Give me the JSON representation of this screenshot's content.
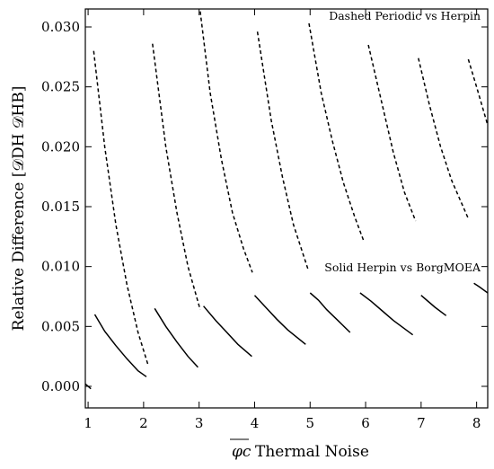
{
  "chart_data": {
    "type": "line",
    "title": "",
    "xlabel_symbol": "φc",
    "xlabel_text": "Thermal Noise",
    "ylabel": "Relative Difference [𝒟DH  𝒟HB]",
    "xlim": [
      0.95,
      8.2
    ],
    "ylim": [
      -0.0018,
      0.0315
    ],
    "xticks": [
      1,
      2,
      3,
      4,
      5,
      6,
      7,
      8
    ],
    "xtick_labels": [
      "1",
      "2",
      "3",
      "4",
      "5",
      "6",
      "7",
      "8"
    ],
    "yticks": [
      0.0,
      0.005,
      0.01,
      0.015,
      0.02,
      0.025,
      0.03
    ],
    "ytick_labels": [
      "0.000",
      "0.005",
      "0.010",
      "0.015",
      "0.020",
      "0.025",
      "0.030"
    ],
    "annotations": [
      {
        "text": "Dashed Periodic vs Herpin",
        "x": 6.85,
        "y": 0.0304
      },
      {
        "text": "Solid Herpin vs BorgMOEA",
        "x": 6.85,
        "y": 0.0095
      }
    ],
    "series": [
      {
        "style": "dashed",
        "segments": [
          {
            "x": [
              1.1,
              1.3,
              1.5,
              1.7,
              1.9,
              2.08
            ],
            "y": [
              0.028,
              0.02,
              0.0135,
              0.0085,
              0.0045,
              0.0018
            ]
          },
          {
            "x": [
              2.16,
              2.4,
              2.6,
              2.8,
              3.02
            ],
            "y": [
              0.0286,
              0.02,
              0.0145,
              0.01,
              0.0064
            ]
          },
          {
            "x": [
              3.02,
              3.2,
              3.4,
              3.6,
              3.8,
              3.96
            ],
            "y": [
              0.0313,
              0.0245,
              0.019,
              0.0145,
              0.0115,
              0.0095
            ]
          },
          {
            "x": [
              4.05,
              4.3,
              4.5,
              4.7,
              4.96
            ],
            "y": [
              0.0296,
              0.0222,
              0.0175,
              0.0135,
              0.0098
            ]
          },
          {
            "x": [
              4.98,
              5.2,
              5.4,
              5.6,
              5.8,
              5.96
            ],
            "y": [
              0.0303,
              0.0245,
              0.0205,
              0.017,
              0.0142,
              0.0122
            ]
          },
          {
            "x": [
              6.05,
              6.3,
              6.5,
              6.7,
              6.9
            ],
            "y": [
              0.0285,
              0.0235,
              0.0195,
              0.0162,
              0.0138
            ]
          },
          {
            "x": [
              6.95,
              7.15,
              7.35,
              7.55,
              7.85
            ],
            "y": [
              0.0274,
              0.0235,
              0.02,
              0.0172,
              0.014
            ]
          },
          {
            "x": [
              7.85,
              8.0,
              8.2
            ],
            "y": [
              0.0273,
              0.025,
              0.0218
            ]
          }
        ]
      },
      {
        "style": "solid",
        "segments": [
          {
            "x": [
              0.95,
              1.05
            ],
            "y": [
              0.0002,
              -0.0002
            ]
          },
          {
            "x": [
              1.12,
              1.3,
              1.5,
              1.7,
              1.9,
              2.05
            ],
            "y": [
              0.006,
              0.0046,
              0.0034,
              0.0023,
              0.0013,
              0.0008
            ]
          },
          {
            "x": [
              2.2,
              2.4,
              2.6,
              2.8,
              2.98
            ],
            "y": [
              0.0065,
              0.005,
              0.0037,
              0.0025,
              0.0016
            ]
          },
          {
            "x": [
              3.08,
              3.3,
              3.5,
              3.7,
              3.95
            ],
            "y": [
              0.0067,
              0.0055,
              0.0045,
              0.0035,
              0.0025
            ]
          },
          {
            "x": [
              4.0,
              4.2,
              4.4,
              4.6,
              4.92
            ],
            "y": [
              0.0076,
              0.0066,
              0.0056,
              0.0047,
              0.0035
            ]
          },
          {
            "x": [
              5.0,
              5.15,
              5.3,
              5.5,
              5.72
            ],
            "y": [
              0.0078,
              0.0072,
              0.0064,
              0.0055,
              0.0045
            ]
          },
          {
            "x": [
              5.9,
              6.1,
              6.3,
              6.5,
              6.85
            ],
            "y": [
              0.0078,
              0.0071,
              0.0063,
              0.0055,
              0.0043
            ]
          },
          {
            "x": [
              7.0,
              7.1,
              7.25,
              7.45
            ],
            "y": [
              0.0076,
              0.0072,
              0.0066,
              0.0059
            ]
          },
          {
            "x": [
              7.95,
              8.05,
              8.2
            ],
            "y": [
              0.0086,
              0.0083,
              0.0078
            ]
          }
        ]
      }
    ]
  }
}
